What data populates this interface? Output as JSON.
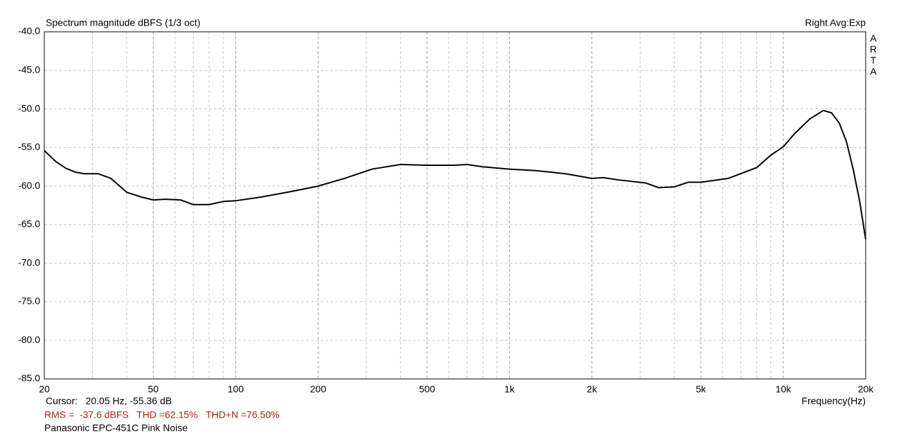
{
  "chart_data": {
    "type": "line",
    "title": "Spectrum magnitude dBFS (1/3 oct)",
    "mode_label": "Right Avg:Exp",
    "watermark": "ARTA",
    "x_label": "Frequency(Hz)",
    "cursor_text": "Cursor:   20.05 Hz, -55.36 dB",
    "stats_text": "RMS =  -37.6 dBFS   THD =62.15%   THD+N =76.50%",
    "stats_color": "#b02020",
    "caption": "Panasonic EPC-451C Pink Noise",
    "x_scale": "log",
    "grid": true,
    "xlim": [
      20,
      20000
    ],
    "ylim": [
      -85,
      -40
    ],
    "xticks": [
      20,
      50,
      100,
      200,
      500,
      {
        "value": 1000,
        "label": "1k"
      },
      {
        "value": 2000,
        "label": "2k"
      },
      {
        "value": 5000,
        "label": "5k"
      },
      {
        "value": 10000,
        "label": "10k"
      },
      {
        "value": 20000,
        "label": "20k"
      }
    ],
    "xminorticks": [
      30,
      40,
      60,
      70,
      80,
      90,
      300,
      400,
      600,
      700,
      800,
      900,
      3000,
      4000,
      6000,
      7000,
      8000,
      9000
    ],
    "yticks": [
      {
        "value": -40,
        "label": "-40.0"
      },
      {
        "value": -45,
        "label": "-45.0"
      },
      {
        "value": -50,
        "label": "-50.0"
      },
      {
        "value": -55,
        "label": "-55.0"
      },
      {
        "value": -60,
        "label": "-60.0"
      },
      {
        "value": -65,
        "label": "-65.0"
      },
      {
        "value": -70,
        "label": "-70.0"
      },
      {
        "value": -75,
        "label": "-75.0"
      },
      {
        "value": -80,
        "label": "-80.0"
      },
      {
        "value": -85,
        "label": "-85.0"
      }
    ],
    "x": [
      20,
      22,
      24,
      26,
      28,
      31.5,
      35,
      40,
      45,
      50,
      55,
      63,
      70,
      80,
      90,
      100,
      125,
      160,
      200,
      250,
      315,
      400,
      500,
      630,
      700,
      800,
      1000,
      1250,
      1600,
      2000,
      2200,
      2500,
      3150,
      3500,
      4000,
      4500,
      5000,
      6300,
      8000,
      9000,
      10000,
      11000,
      12500,
      14000,
      15000,
      16000,
      17000,
      18000,
      19000,
      20000
    ],
    "series": [
      {
        "color": "#000000",
        "values": [
          -55.4,
          -56.8,
          -57.7,
          -58.2,
          -58.4,
          -58.4,
          -59.0,
          -60.8,
          -61.4,
          -61.8,
          -61.7,
          -61.8,
          -62.4,
          -62.4,
          -62.0,
          -61.9,
          -61.4,
          -60.7,
          -60.0,
          -59.0,
          -57.8,
          -57.2,
          -57.3,
          -57.3,
          -57.2,
          -57.5,
          -57.8,
          -58.0,
          -58.4,
          -59.0,
          -58.9,
          -59.2,
          -59.6,
          -60.2,
          -60.1,
          -59.5,
          -59.5,
          -59.0,
          -57.6,
          -56.0,
          -54.9,
          -53.2,
          -51.3,
          -50.2,
          -50.5,
          -51.8,
          -54.2,
          -57.8,
          -61.9,
          -66.9
        ]
      }
    ]
  }
}
